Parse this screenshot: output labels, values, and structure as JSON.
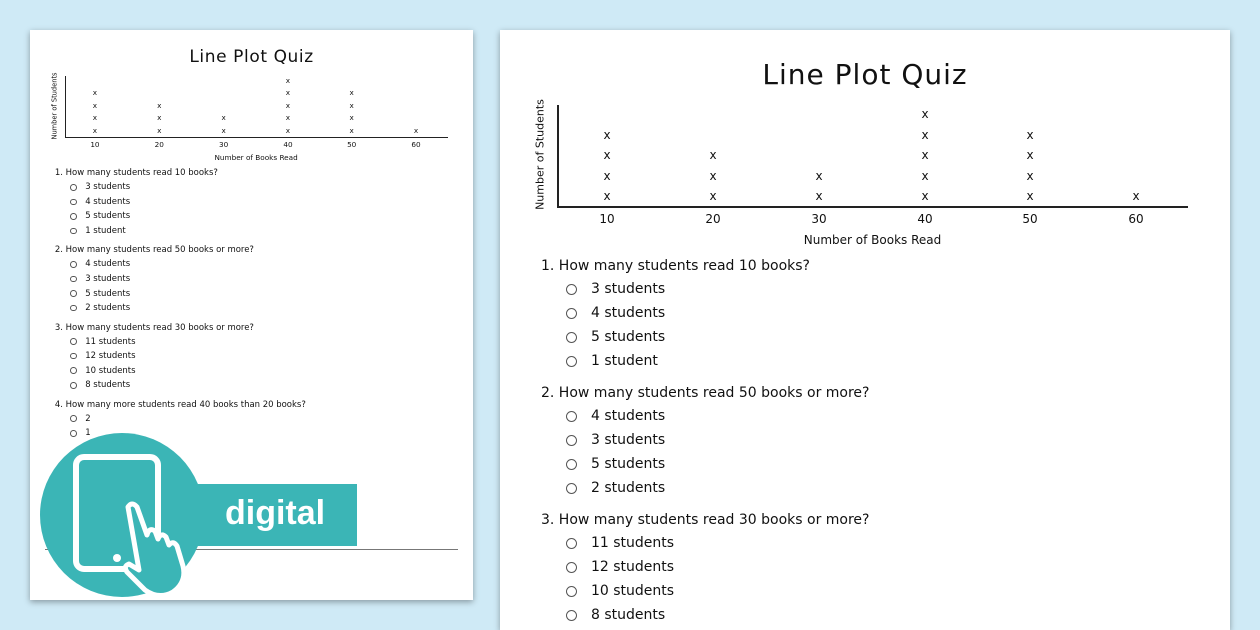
{
  "worksheet": {
    "title": "Line Plot Quiz",
    "questions": [
      {
        "label": "1.  How many students read 10 books?",
        "options": [
          "3 students",
          "4 students",
          "5 students",
          "1 student"
        ]
      },
      {
        "label": "2.  How many students read 50 books or more?",
        "options": [
          "4 students",
          "3 students",
          "5 students",
          "2 students"
        ]
      },
      {
        "label": "3.  How many students read 30 books or more?",
        "options": [
          "11 students",
          "12 students",
          "10 students",
          "8 students"
        ]
      },
      {
        "label": "4.  How many more students read 40 books than 20 books?",
        "options": [
          "2",
          "1"
        ]
      }
    ]
  },
  "chart_data": {
    "type": "scatter",
    "subtype": "line-plot",
    "xlabel": "Number of Books Read",
    "ylabel": "Number of Students",
    "categories": [
      "10",
      "20",
      "30",
      "40",
      "50",
      "60"
    ],
    "values": [
      4,
      3,
      2,
      5,
      4,
      1
    ],
    "marker": "x"
  },
  "badge": {
    "label": "digital",
    "icon": "tablet-touch-icon",
    "color": "#3bb5b6"
  },
  "colors": {
    "background": "#cfeaf6",
    "accent": "#3bb5b6"
  }
}
